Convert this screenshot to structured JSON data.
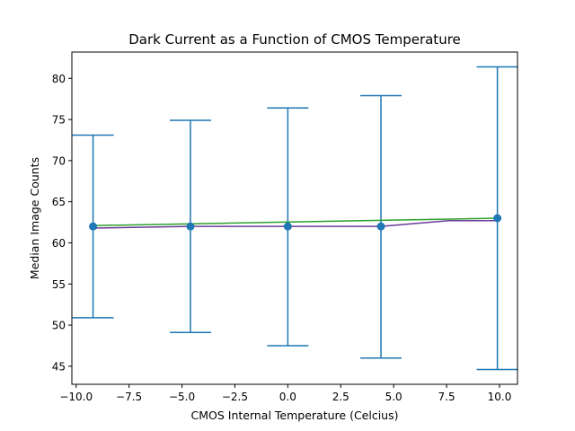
{
  "chart_data": {
    "type": "line",
    "title": "Dark Current as a Function of CMOS Temperature",
    "xlabel": "CMOS Internal Temperature (Celcius)",
    "ylabel": "Median Image Counts",
    "xlim": [
      -10.2,
      10.85
    ],
    "ylim": [
      42.8,
      83.2
    ],
    "grid": false,
    "x_ticks": [
      -10.0,
      -7.5,
      -5.0,
      -2.5,
      0.0,
      2.5,
      5.0,
      7.5,
      10.0
    ],
    "x_tick_labels": [
      "−10.0",
      "−7.5",
      "−5.0",
      "−2.5",
      "0.0",
      "2.5",
      "5.0",
      "7.5",
      "10.0"
    ],
    "y_ticks": [
      45,
      50,
      55,
      60,
      65,
      70,
      75,
      80
    ],
    "y_tick_labels": [
      "45",
      "50",
      "55",
      "60",
      "65",
      "70",
      "75",
      "80"
    ],
    "series": [
      {
        "kind": "errorbar",
        "color": "#1f77b4",
        "x": [
          -9.2,
          -4.6,
          0.0,
          4.4,
          9.9
        ],
        "y": [
          62,
          62,
          62,
          62,
          63
        ],
        "y_lower": [
          50.9,
          49.1,
          47.5,
          46.0,
          44.6
        ],
        "y_upper": [
          73.1,
          74.9,
          76.4,
          77.9,
          81.4
        ]
      },
      {
        "kind": "line",
        "color": "#6a3d9a",
        "x": [
          -9.2,
          -4.6,
          0.0,
          4.4,
          7.6,
          9.9
        ],
        "y": [
          61.8,
          62.0,
          62.0,
          62.0,
          62.7,
          62.7
        ]
      },
      {
        "kind": "line",
        "color": "#2ca02c",
        "x": [
          -9.2,
          9.9
        ],
        "y": [
          62.1,
          63.0
        ]
      }
    ]
  }
}
